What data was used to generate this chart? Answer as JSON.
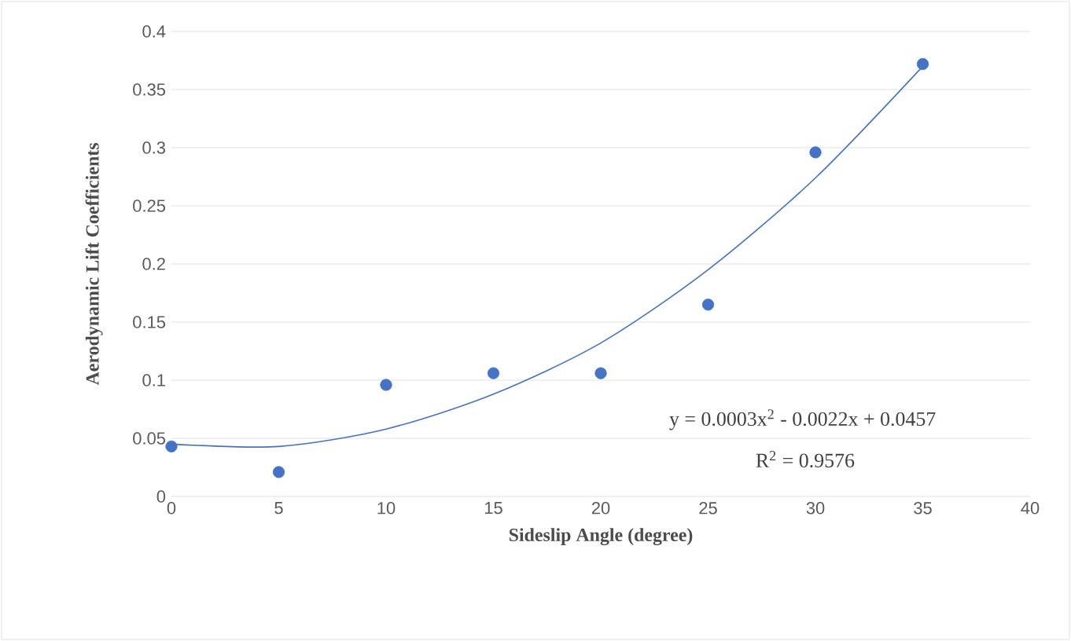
{
  "chart_data": {
    "type": "scatter",
    "xlabel": "Sideslip Angle (degree)",
    "ylabel": "Aerodynamic Lift Coefficients",
    "xlim": [
      0,
      40
    ],
    "xticks": [
      0,
      5,
      10,
      15,
      20,
      25,
      30,
      35,
      40
    ],
    "ylim": [
      0,
      0.4
    ],
    "yticks": [
      0,
      0.05,
      0.1,
      0.15,
      0.2,
      0.25,
      0.3,
      0.35,
      0.4
    ],
    "grid": "y",
    "marker": "circle",
    "series": [
      {
        "color": "#4472c4",
        "x": [
          0,
          5,
          10,
          15,
          20,
          25,
          30,
          35
        ],
        "values": [
          0.043,
          0.021,
          0.096,
          0.106,
          0.106,
          0.165,
          0.296,
          0.372
        ]
      },
      {
        "type": "line",
        "marker": "none",
        "color": "#4472c4",
        "x": [
          0,
          5,
          10,
          15,
          20,
          25,
          30,
          35
        ],
        "values": [
          0.045,
          0.043,
          0.058,
          0.088,
          0.132,
          0.195,
          0.274,
          0.37
        ]
      }
    ],
    "annotations": [
      "y = 0.0003x$^{2}$ - 0.0022x + 0.0457",
      "R$^{2}$ = 0.9576"
    ]
  }
}
